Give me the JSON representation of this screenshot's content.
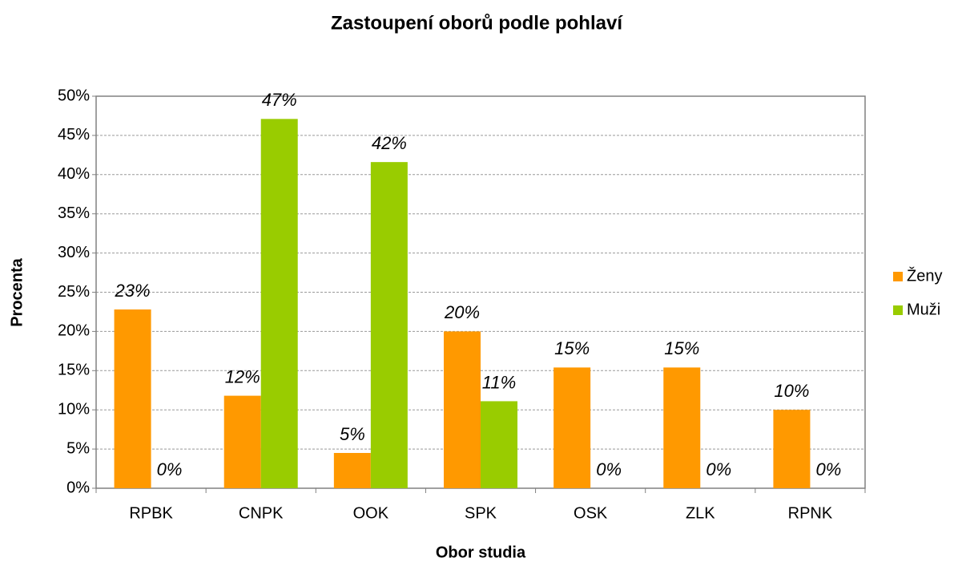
{
  "chart_data": {
    "type": "bar",
    "title": "Zastoupení oborů podle pohlaví",
    "x_label": "Obor studia",
    "y_label": "Procenta",
    "categories": [
      "RPBK",
      "CNPK",
      "OOK",
      "SPK",
      "OSK",
      "ZLK",
      "RPNK"
    ],
    "series": [
      {
        "name": "Ženy",
        "color": "#ff9900",
        "values": [
          22.8,
          11.8,
          4.5,
          20.0,
          15.4,
          15.4,
          10.0
        ],
        "value_labels": [
          "23%",
          "12%",
          "5%",
          "20%",
          "15%",
          "15%",
          "10%"
        ]
      },
      {
        "name": "Muži",
        "color": "#99cc00",
        "values": [
          0,
          47.1,
          41.6,
          11.1,
          0,
          0,
          0
        ],
        "value_labels": [
          "0%",
          "47%",
          "42%",
          "11%",
          "0%",
          "0%",
          "0%"
        ]
      }
    ],
    "ylim": [
      0,
      50
    ],
    "yticks": [
      {
        "value": 0,
        "label": "0%"
      },
      {
        "value": 5,
        "label": "5%"
      },
      {
        "value": 10,
        "label": "10%"
      },
      {
        "value": 15,
        "label": "15%"
      },
      {
        "value": 20,
        "label": "20%"
      },
      {
        "value": 25,
        "label": "25%"
      },
      {
        "value": 30,
        "label": "30%"
      },
      {
        "value": 35,
        "label": "35%"
      },
      {
        "value": 40,
        "label": "40%"
      },
      {
        "value": 45,
        "label": "45%"
      },
      {
        "value": 50,
        "label": "50%"
      }
    ],
    "grid": true,
    "legend": "right"
  }
}
